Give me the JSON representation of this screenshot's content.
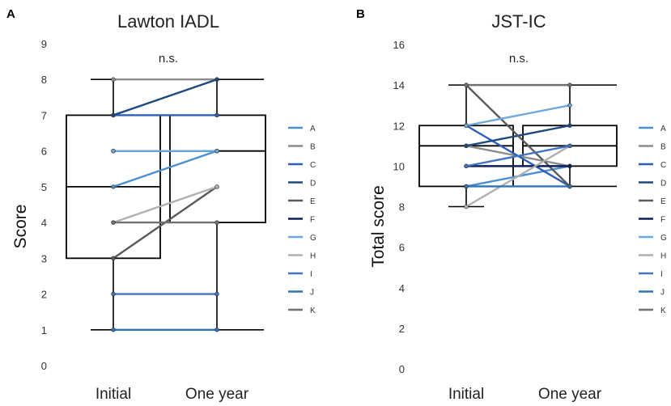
{
  "chart_data": [
    {
      "panel_label": "A",
      "type": "box-with-paired-lines",
      "title": "Lawton IADL",
      "ylabel": "Score",
      "xlabel": "",
      "categories": [
        "Initial",
        "One year"
      ],
      "ylim": [
        0,
        9
      ],
      "yticks": [
        "0",
        "1",
        "2",
        "3",
        "4",
        "5",
        "6",
        "7",
        "8",
        "9"
      ],
      "annotation": "n.s.",
      "boxes": [
        {
          "category": "Initial",
          "min": 1,
          "q1": 3,
          "median": 5,
          "q3": 7,
          "max": 8
        },
        {
          "category": "One year",
          "min": 1,
          "q1": 4,
          "median": 6,
          "q3": 7,
          "max": 8
        }
      ],
      "series": [
        {
          "name": "A",
          "color": "#4a8fd0",
          "values": [
            5,
            6
          ]
        },
        {
          "name": "B",
          "color": "#8c8c8c",
          "values": [
            8,
            8
          ]
        },
        {
          "name": "C",
          "color": "#2e5fb5",
          "values": [
            7,
            7
          ]
        },
        {
          "name": "D",
          "color": "#1c4a80",
          "values": [
            7,
            8
          ]
        },
        {
          "name": "E",
          "color": "#595959",
          "values": [
            3,
            5
          ]
        },
        {
          "name": "F",
          "color": "#0d1f5c",
          "values": [
            6,
            6
          ]
        },
        {
          "name": "G",
          "color": "#6fa8dc",
          "values": [
            6,
            6
          ]
        },
        {
          "name": "H",
          "color": "#b0b0b0",
          "values": [
            4,
            5
          ]
        },
        {
          "name": "I",
          "color": "#4472c4",
          "values": [
            2,
            2
          ]
        },
        {
          "name": "J",
          "color": "#2e75b6",
          "values": [
            1,
            1
          ]
        },
        {
          "name": "K",
          "color": "#707070",
          "values": [
            4,
            4
          ]
        }
      ]
    },
    {
      "panel_label": "B",
      "type": "box-with-paired-lines",
      "title": "JST-IC",
      "ylabel": "Total score",
      "xlabel": "",
      "categories": [
        "Initial",
        "One year"
      ],
      "ylim": [
        0,
        16
      ],
      "yticks": [
        "0",
        "2",
        "4",
        "6",
        "8",
        "10",
        "12",
        "14",
        "16"
      ],
      "annotation": "n.s.",
      "boxes": [
        {
          "category": "Initial",
          "min": 8,
          "q1": 9,
          "median": 11,
          "q3": 12,
          "max": 14
        },
        {
          "category": "One year",
          "min": 9,
          "q1": 10,
          "median": 11,
          "q3": 12,
          "max": 14
        }
      ],
      "series": [
        {
          "name": "A",
          "color": "#4a8fd0",
          "values": [
            9,
            10
          ]
        },
        {
          "name": "B",
          "color": "#8c8c8c",
          "values": [
            11,
            10
          ]
        },
        {
          "name": "C",
          "color": "#2e5fb5",
          "values": [
            12,
            9
          ]
        },
        {
          "name": "D",
          "color": "#1c4a80",
          "values": [
            11,
            12
          ]
        },
        {
          "name": "E",
          "color": "#595959",
          "values": [
            14,
            9
          ]
        },
        {
          "name": "F",
          "color": "#0d1f5c",
          "values": [
            10,
            10
          ]
        },
        {
          "name": "G",
          "color": "#6fa8dc",
          "values": [
            12,
            13
          ]
        },
        {
          "name": "H",
          "color": "#b0b0b0",
          "values": [
            8,
            11
          ]
        },
        {
          "name": "I",
          "color": "#4472c4",
          "values": [
            10,
            11
          ]
        },
        {
          "name": "J",
          "color": "#2e75b6",
          "values": [
            9,
            9
          ]
        },
        {
          "name": "K",
          "color": "#707070",
          "values": [
            14,
            14
          ]
        }
      ]
    }
  ]
}
